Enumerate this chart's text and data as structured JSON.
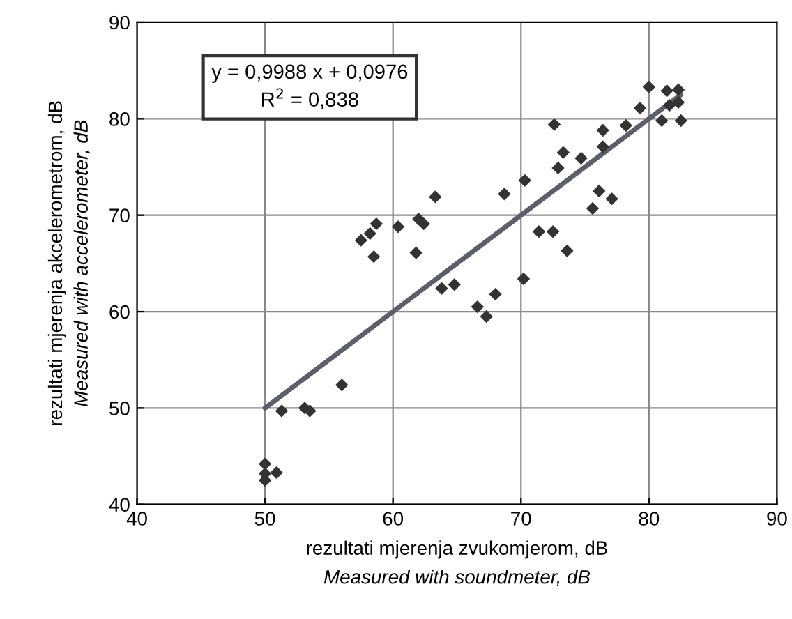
{
  "chart_data": {
    "type": "scatter",
    "xlabel": "rezultati mjerenja zvukomjerom, dB\nMeasured with soundmeter, dB",
    "ylabel": "rezultati mjerenja akcelerometrom, dB\nMeasured with accelerometer, dB",
    "xlim": [
      40,
      90
    ],
    "xticks": [
      40,
      50,
      60,
      70,
      80,
      90
    ],
    "ylim": [
      40,
      90
    ],
    "yticks": [
      40,
      50,
      60,
      70,
      80,
      90
    ],
    "grid": true,
    "legend": false,
    "annotations": [
      "y = 0,9988 x + 0,0976",
      "R$^{2}$ = 0,838"
    ],
    "series": [
      {
        "marker": "diamond",
        "color": "#333333",
        "x": [
          50,
          50,
          50,
          50.9,
          51.3,
          53.1,
          53.5,
          56.0,
          57.5,
          58.2,
          58.7,
          58.5,
          60.4,
          61.8,
          62.0,
          62.4,
          63.3,
          63.8,
          64.8,
          66.6,
          67.3,
          68.0,
          68.7,
          70.2,
          70.3,
          71.4,
          72.5,
          72.6,
          73.6,
          73.3,
          72.9,
          74.7,
          76.4,
          76.4,
          78.2,
          76.1,
          77.1,
          75.6,
          79.3,
          80.0,
          81.4,
          82.3,
          81.6,
          82.3,
          81.0,
          82.5
        ],
        "values": [
          44.2,
          43.2,
          42.5,
          43.3,
          49.7,
          50.0,
          49.7,
          52.4,
          67.4,
          68.1,
          69.1,
          65.7,
          68.8,
          66.1,
          69.6,
          69.1,
          71.9,
          62.4,
          62.8,
          60.5,
          59.5,
          61.8,
          72.2,
          63.4,
          73.6,
          68.3,
          68.3,
          79.4,
          66.3,
          76.5,
          74.9,
          75.9,
          78.8,
          77.1,
          79.3,
          72.5,
          71.7,
          70.7,
          81.1,
          83.3,
          82.9,
          83.0,
          81.4,
          81.7,
          79.8,
          79.8
        ]
      },
      {
        "type": "line",
        "marker": "none",
        "color": "#5a5f6a",
        "x": [
          50,
          82.5
        ],
        "values": [
          50.0,
          82.5
        ]
      }
    ]
  }
}
